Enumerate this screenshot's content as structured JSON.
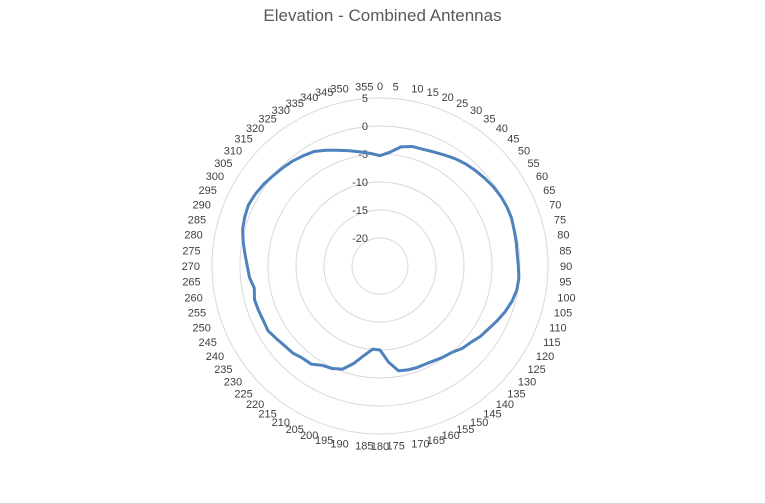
{
  "chart_data": {
    "type": "radar",
    "title": "Elevation - Combined Antennas",
    "categories": [
      "0",
      "5",
      "10",
      "15",
      "20",
      "25",
      "30",
      "35",
      "40",
      "45",
      "50",
      "55",
      "60",
      "65",
      "70",
      "75",
      "80",
      "85",
      "90",
      "95",
      "100",
      "105",
      "110",
      "115",
      "120",
      "125",
      "130",
      "135",
      "140",
      "145",
      "150",
      "155",
      "160",
      "165",
      "170",
      "175",
      "180",
      "185",
      "190",
      "195",
      "200",
      "205",
      "210",
      "215",
      "220",
      "225",
      "230",
      "235",
      "240",
      "245",
      "250",
      "255",
      "260",
      "265",
      "270",
      "275",
      "280",
      "285",
      "290",
      "295",
      "300",
      "305",
      "310",
      "315",
      "320",
      "325",
      "330",
      "335",
      "340",
      "345",
      "350",
      "355"
    ],
    "radial_ticks": [
      5,
      0,
      -5,
      -10,
      -15,
      -20
    ],
    "rlim": [
      -25,
      5
    ],
    "grid": true,
    "series": [
      {
        "color": "#4f81bd",
        "values": [
          -5.3,
          -4.6,
          -3.4,
          -2.9,
          -2.8,
          -2.5,
          -2.1,
          -1.6,
          -1.2,
          -0.9,
          -0.6,
          -0.3,
          -0.1,
          0.0,
          0.0,
          -0.2,
          -0.3,
          -0.4,
          -0.3,
          -0.1,
          -0.2,
          -0.6,
          -1.2,
          -1.9,
          -2.6,
          -3.1,
          -3.8,
          -4.2,
          -4.9,
          -5.2,
          -5.5,
          -5.7,
          -5.7,
          -5.8,
          -6.0,
          -7.8,
          -10.0,
          -10.1,
          -8.8,
          -7.0,
          -5.4,
          -4.8,
          -4.5,
          -3.6,
          -3.5,
          -3.0,
          -2.8,
          -2.4,
          -1.9,
          -2.0,
          -1.9,
          -1.8,
          -2.2,
          -1.6,
          -1.3,
          -0.8,
          -0.2,
          0.4,
          0.7,
          0.9,
          0.7,
          0.4,
          0.0,
          -0.3,
          -0.6,
          -1.0,
          -1.4,
          -2.2,
          -3.0,
          -3.7,
          -4.3,
          -4.8
        ]
      }
    ]
  }
}
